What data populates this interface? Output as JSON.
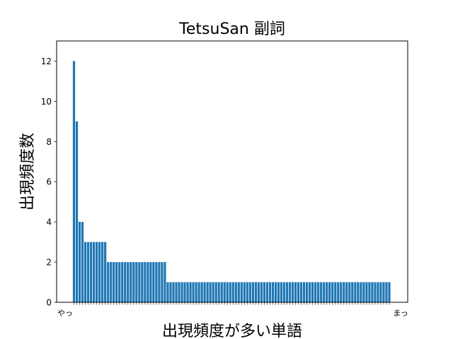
{
  "chart_data": {
    "type": "bar",
    "title": "TetsuSan 副詞",
    "xlabel": "出現頻度が多い単語",
    "ylabel": "出現頻度数",
    "ylim": [
      0,
      13
    ],
    "yticks": [
      0,
      2,
      4,
      6,
      8,
      10,
      12
    ],
    "grid": false,
    "bar_color": "#1f77b4",
    "first_category": "やっ",
    "last_category": "まっ",
    "values": [
      12,
      9,
      4,
      4,
      3,
      3,
      3,
      3,
      3,
      3,
      3,
      3,
      2,
      2,
      2,
      2,
      2,
      2,
      2,
      2,
      2,
      2,
      2,
      2,
      2,
      2,
      2,
      2,
      2,
      2,
      2,
      2,
      2,
      1,
      1,
      1,
      1,
      1,
      1,
      1,
      1,
      1,
      1,
      1,
      1,
      1,
      1,
      1,
      1,
      1,
      1,
      1,
      1,
      1,
      1,
      1,
      1,
      1,
      1,
      1,
      1,
      1,
      1,
      1,
      1,
      1,
      1,
      1,
      1,
      1,
      1,
      1,
      1,
      1,
      1,
      1,
      1,
      1,
      1,
      1,
      1,
      1,
      1,
      1,
      1,
      1,
      1,
      1,
      1,
      1,
      1,
      1,
      1,
      1,
      1,
      1,
      1,
      1,
      1,
      1,
      1,
      1,
      1,
      1,
      1,
      1,
      1,
      1,
      1,
      1,
      1,
      1
    ]
  }
}
